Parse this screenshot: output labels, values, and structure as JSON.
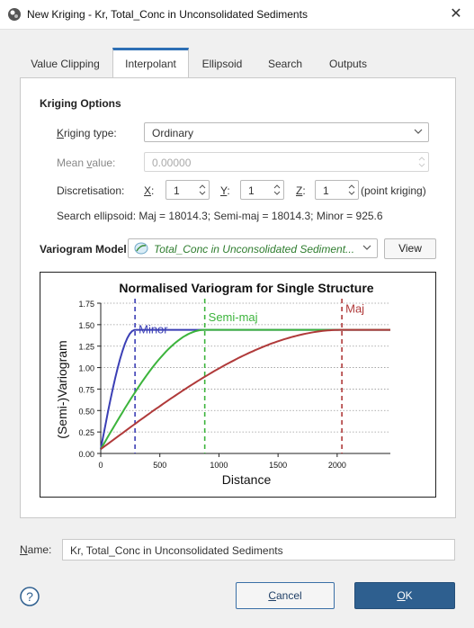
{
  "window": {
    "title": "New Kriging - Kr, Total_Conc in Unconsolidated Sediments",
    "close_glyph": "✕"
  },
  "tabs": [
    {
      "label": "Value Clipping",
      "active": false
    },
    {
      "label": "Interpolant",
      "active": true
    },
    {
      "label": "Ellipsoid",
      "active": false
    },
    {
      "label": "Search",
      "active": false
    },
    {
      "label": "Outputs",
      "active": false
    }
  ],
  "kriging_options": {
    "heading": "Kriging Options",
    "type_label_pre": "K",
    "type_label_post": "riging type:",
    "type_value": "Ordinary",
    "mean_label_pre": "Mean ",
    "mean_label_u": "v",
    "mean_label_post": "alue:",
    "mean_value": "0.00000",
    "disc_label": "Discretisation:",
    "x_label": "X",
    "x_value": "1",
    "y_label": "Y",
    "y_value": "1",
    "z_label": "Z",
    "z_value": "1",
    "colon": ":",
    "disc_note": "(point kriging)",
    "search_ellipsoid": "Search ellipsoid:  Maj = 18014.3; Semi-maj = 18014.3; Minor = 925.6"
  },
  "variogram_model": {
    "label": "Variogram Model",
    "value": "Total_Conc in Unconsolidated Sediment...",
    "view_button": "View"
  },
  "name": {
    "label_u": "N",
    "label_post": "ame:",
    "value": "Kr, Total_Conc in Unconsolidated Sediments"
  },
  "buttons": {
    "cancel_u": "C",
    "cancel_post": "ancel",
    "ok_u": "O",
    "ok_post": "K",
    "help_glyph": "?"
  },
  "colors": {
    "accent": "#2d6fb5",
    "minor": "#3b3fb5",
    "semi_maj": "#3cb43c",
    "maj": "#b03a3a"
  },
  "chart_data": {
    "type": "line",
    "title": "Normalised Variogram for Single Structure",
    "xlabel": "Distance",
    "ylabel": "(Semi-)Variogram",
    "xlim": [
      0,
      2450
    ],
    "ylim": [
      0,
      1.75
    ],
    "xticks": [
      0,
      500,
      1000,
      1500,
      2000
    ],
    "yticks": [
      0.0,
      0.25,
      0.5,
      0.75,
      1.0,
      1.25,
      1.5,
      1.75
    ],
    "sill": 1.44,
    "nugget": 0.05,
    "grid": "horizontal-dotted",
    "series": [
      {
        "name": "Minor",
        "range": 290,
        "color": "#3b3fb5"
      },
      {
        "name": "Semi-maj",
        "range": 880,
        "color": "#3cb43c"
      },
      {
        "name": "Maj",
        "range": 2040,
        "color": "#b03a3a"
      }
    ]
  }
}
